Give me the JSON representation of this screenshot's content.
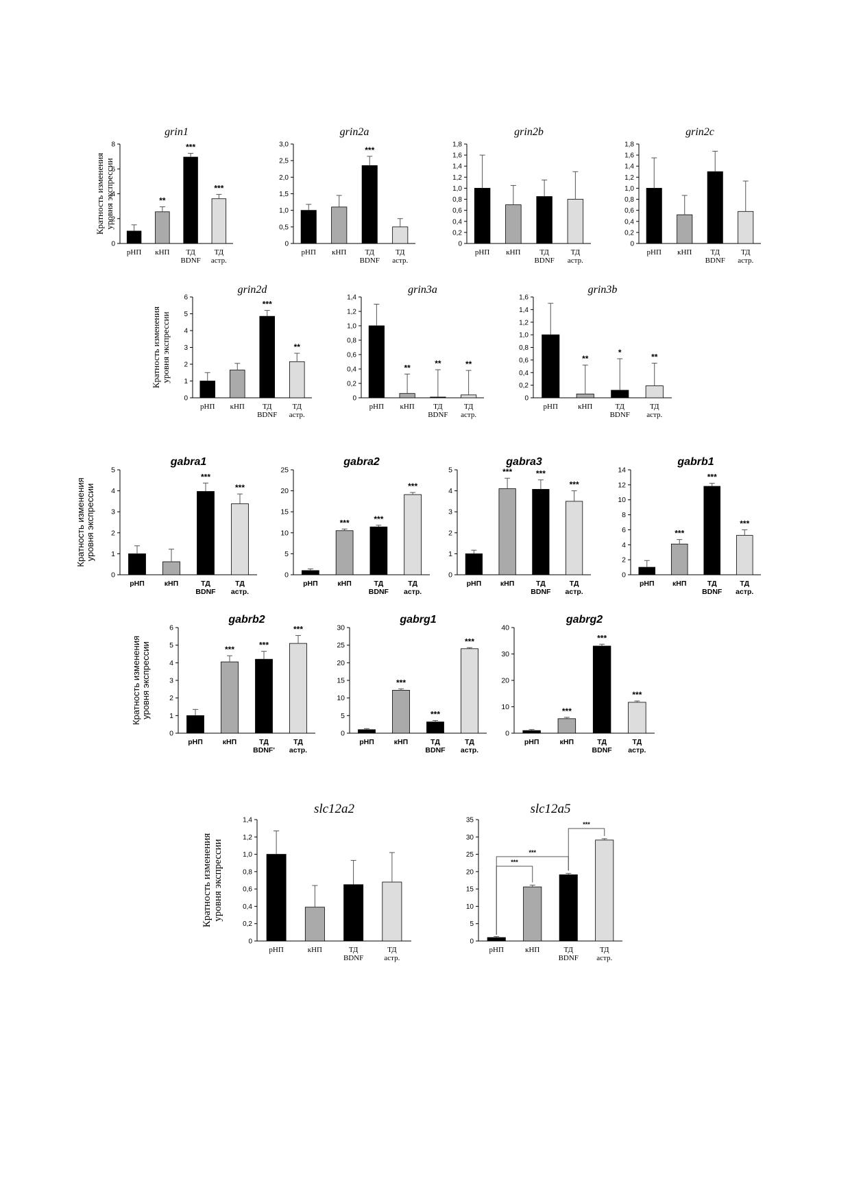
{
  "categories": [
    [
      "рНП"
    ],
    [
      "кНП"
    ],
    [
      "ТД",
      "BDNF"
    ],
    [
      "ТД",
      "астр."
    ]
  ],
  "categories_alt": [
    [
      "рНП"
    ],
    [
      "кНП"
    ],
    [
      "ТД",
      "BDNF'"
    ],
    [
      "ТД",
      "астр."
    ]
  ],
  "ylabel": [
    "Кратность изменения",
    "уровня экспрессии"
  ],
  "colors": [
    "#000000",
    "#aaaaaa",
    "#000000",
    "#dddddd"
  ],
  "chart_data": [
    {
      "type": "bar",
      "title": "grin1",
      "categories": [
        "рНП",
        "кНП",
        "ТД BDNF",
        "ТД астр."
      ],
      "values": [
        1.0,
        2.55,
        6.95,
        3.6
      ],
      "errors": [
        0.5,
        0.4,
        0.3,
        0.35
      ],
      "sig": [
        "",
        "**",
        "***",
        "***"
      ],
      "ylim": [
        0,
        8
      ],
      "ticks": [
        "0",
        "2",
        "4",
        "6",
        "8"
      ]
    },
    {
      "type": "bar",
      "title": "grin2a",
      "categories": [
        "рНП",
        "кНП",
        "ТД BDNF",
        "ТД астр."
      ],
      "values": [
        1.0,
        1.1,
        2.35,
        0.5
      ],
      "errors": [
        0.18,
        0.35,
        0.28,
        0.25
      ],
      "sig": [
        "",
        "",
        "***",
        ""
      ],
      "ylim": [
        0,
        3
      ],
      "ticks": [
        "0",
        "0,5",
        "1,0",
        "1,5",
        "2,0",
        "2,5",
        "3,0"
      ]
    },
    {
      "type": "bar",
      "title": "grin2b",
      "categories": [
        "рНП",
        "кНП",
        "ТД BDNF",
        "ТД астр."
      ],
      "values": [
        1.0,
        0.7,
        0.85,
        0.8
      ],
      "errors": [
        0.6,
        0.35,
        0.3,
        0.5
      ],
      "sig": [
        "",
        "",
        "",
        ""
      ],
      "ylim": [
        0,
        1.8
      ],
      "ticks": [
        "0",
        "0,2",
        "0,4",
        "0,6",
        "0,8",
        "1,0",
        "1,2",
        "1,4",
        "1,6",
        "1,8"
      ]
    },
    {
      "type": "bar",
      "title": "grin2c",
      "categories": [
        "рНП",
        "кНП",
        "ТД BDNF",
        "ТД астр."
      ],
      "values": [
        1.0,
        0.52,
        1.3,
        0.58
      ],
      "errors": [
        0.55,
        0.35,
        0.37,
        0.55
      ],
      "sig": [
        "",
        "",
        "",
        ""
      ],
      "ylim": [
        0,
        1.8
      ],
      "ticks": [
        "0",
        "0,2",
        "0,4",
        "0,6",
        "0,8",
        "1,0",
        "1,2",
        "1,4",
        "1,6",
        "1,8"
      ]
    },
    {
      "type": "bar",
      "title": "grin2d",
      "categories": [
        "рНП",
        "кНП",
        "ТД BDNF",
        "ТД астр."
      ],
      "values": [
        1.0,
        1.65,
        4.85,
        2.15
      ],
      "errors": [
        0.5,
        0.4,
        0.35,
        0.5
      ],
      "sig": [
        "",
        "",
        "***",
        "**"
      ],
      "ylim": [
        0,
        6
      ],
      "ticks": [
        "0",
        "1",
        "2",
        "3",
        "4",
        "5",
        "6"
      ]
    },
    {
      "type": "bar",
      "title": "grin3a",
      "categories": [
        "рНП",
        "кНП",
        "ТД BDNF",
        "ТД астр."
      ],
      "values": [
        1.0,
        0.06,
        0.01,
        0.04
      ],
      "errors": [
        0.3,
        0.27,
        0.38,
        0.34
      ],
      "sig": [
        "",
        "**",
        "**",
        "**"
      ],
      "ylim": [
        0,
        1.4
      ],
      "ticks": [
        "0",
        "0,2",
        "0,4",
        "0,6",
        "0,8",
        "1,0",
        "1,2",
        "1,4"
      ]
    },
    {
      "type": "bar",
      "title": "grin3b",
      "categories": [
        "рНП",
        "кНП",
        "ТД BDNF",
        "ТД астр."
      ],
      "values": [
        1.0,
        0.06,
        0.12,
        0.19
      ],
      "errors": [
        0.5,
        0.46,
        0.5,
        0.36
      ],
      "sig": [
        "",
        "**",
        "*",
        "**"
      ],
      "ylim": [
        0,
        1.6
      ],
      "ticks": [
        "0",
        "0,2",
        "0,4",
        "0,6",
        "0,8",
        "1,0",
        "1,2",
        "1,4",
        "1,6"
      ]
    },
    {
      "type": "bar",
      "title": "gabra1",
      "categories": [
        "рНП",
        "кНП",
        "ТД BDNF",
        "ТД астр."
      ],
      "values": [
        1.0,
        0.62,
        3.97,
        3.38
      ],
      "errors": [
        0.38,
        0.6,
        0.4,
        0.47
      ],
      "sig": [
        "",
        "",
        "***",
        "***"
      ],
      "ylim": [
        0,
        5
      ],
      "ticks": [
        "0",
        "1",
        "2",
        "3",
        "4",
        "5"
      ]
    },
    {
      "type": "bar",
      "title": "gabra2",
      "categories": [
        "рНП",
        "кНП",
        "ТД BDNF",
        "ТД астр."
      ],
      "values": [
        1.0,
        10.5,
        11.4,
        19.1
      ],
      "errors": [
        0.4,
        0.4,
        0.4,
        0.5
      ],
      "sig": [
        "",
        "***",
        "***",
        "***"
      ],
      "ylim": [
        0,
        25
      ],
      "ticks": [
        "0",
        "5",
        "10",
        "15",
        "20",
        "25"
      ]
    },
    {
      "type": "bar",
      "title": "gabra3",
      "categories": [
        "рНП",
        "кНП",
        "ТД BDNF",
        "ТД астр."
      ],
      "values": [
        1.0,
        4.1,
        4.07,
        3.5
      ],
      "errors": [
        0.17,
        0.5,
        0.45,
        0.5
      ],
      "sig": [
        "",
        "***",
        "***",
        "***"
      ],
      "ylim": [
        0,
        5
      ],
      "ticks": [
        "0",
        "1",
        "2",
        "3",
        "4",
        "5"
      ]
    },
    {
      "type": "bar",
      "title": "gabrb1",
      "categories": [
        "рНП",
        "кНП",
        "ТД BDNF",
        "ТД астр."
      ],
      "values": [
        1.0,
        4.1,
        11.8,
        5.25
      ],
      "errors": [
        0.9,
        0.6,
        0.4,
        0.75
      ],
      "sig": [
        "",
        "***",
        "***",
        "***"
      ],
      "ylim": [
        0,
        14
      ],
      "ticks": [
        "0",
        "2",
        "4",
        "6",
        "8",
        "10",
        "12",
        "14"
      ]
    },
    {
      "type": "bar",
      "title": "gabrb2",
      "categories": [
        "рНП",
        "кНП",
        "ТД BDNF'",
        "ТД астр."
      ],
      "values": [
        1.0,
        4.05,
        4.2,
        5.1
      ],
      "errors": [
        0.35,
        0.35,
        0.45,
        0.45
      ],
      "sig": [
        "",
        "***",
        "***",
        "***"
      ],
      "ylim": [
        0,
        6
      ],
      "ticks": [
        "0",
        "1",
        "2",
        "3",
        "4",
        "5",
        "6"
      ]
    },
    {
      "type": "bar",
      "title": "gabrg1",
      "categories": [
        "рНП",
        "кНП",
        "ТД BDNF",
        "ТД астр."
      ],
      "values": [
        1.0,
        12.2,
        3.2,
        24.0
      ],
      "errors": [
        0.3,
        0.4,
        0.4,
        0.3
      ],
      "sig": [
        "",
        "***",
        "***",
        "***"
      ],
      "ylim": [
        0,
        30
      ],
      "ticks": [
        "0",
        "5",
        "10",
        "15",
        "20",
        "25",
        "30"
      ]
    },
    {
      "type": "bar",
      "title": "gabrg2",
      "categories": [
        "рНП",
        "кНП",
        "ТД BDNF",
        "ТД астр."
      ],
      "values": [
        1.0,
        5.5,
        33.0,
        11.7
      ],
      "errors": [
        0.4,
        0.5,
        0.7,
        0.5
      ],
      "sig": [
        "",
        "***",
        "***",
        "***"
      ],
      "ylim": [
        0,
        40
      ],
      "ticks": [
        "0",
        "10",
        "20",
        "30",
        "40"
      ]
    },
    {
      "type": "bar",
      "title": "slc12a2",
      "categories": [
        "рНП",
        "кНП",
        "ТД BDNF",
        "ТД астр."
      ],
      "values": [
        1.0,
        0.39,
        0.65,
        0.68
      ],
      "errors": [
        0.27,
        0.25,
        0.28,
        0.34
      ],
      "sig": [
        "",
        "",
        "",
        ""
      ],
      "ylim": [
        0,
        1.4
      ],
      "ticks": [
        "0",
        "0,2",
        "0,4",
        "0,6",
        "0,8",
        "1,0",
        "1,2",
        "1,4"
      ]
    },
    {
      "type": "bar",
      "title": "slc12a5",
      "categories": [
        "рНП",
        "кНП",
        "ТД BDNF",
        "ТД астр."
      ],
      "values": [
        1.0,
        15.6,
        19.1,
        29.1
      ],
      "errors": [
        0.3,
        0.5,
        0.4,
        0.4
      ],
      "sig": [
        "",
        "",
        "",
        ""
      ],
      "ylim": [
        0,
        35
      ],
      "ticks": [
        "0",
        "5",
        "10",
        "15",
        "20",
        "25",
        "30",
        "35"
      ],
      "brackets": [
        {
          "from": 0,
          "to": 1,
          "label": "***"
        },
        {
          "from": 0,
          "to": 2,
          "label": "***"
        },
        {
          "from": 2,
          "to": 3,
          "label": "***"
        }
      ]
    }
  ]
}
